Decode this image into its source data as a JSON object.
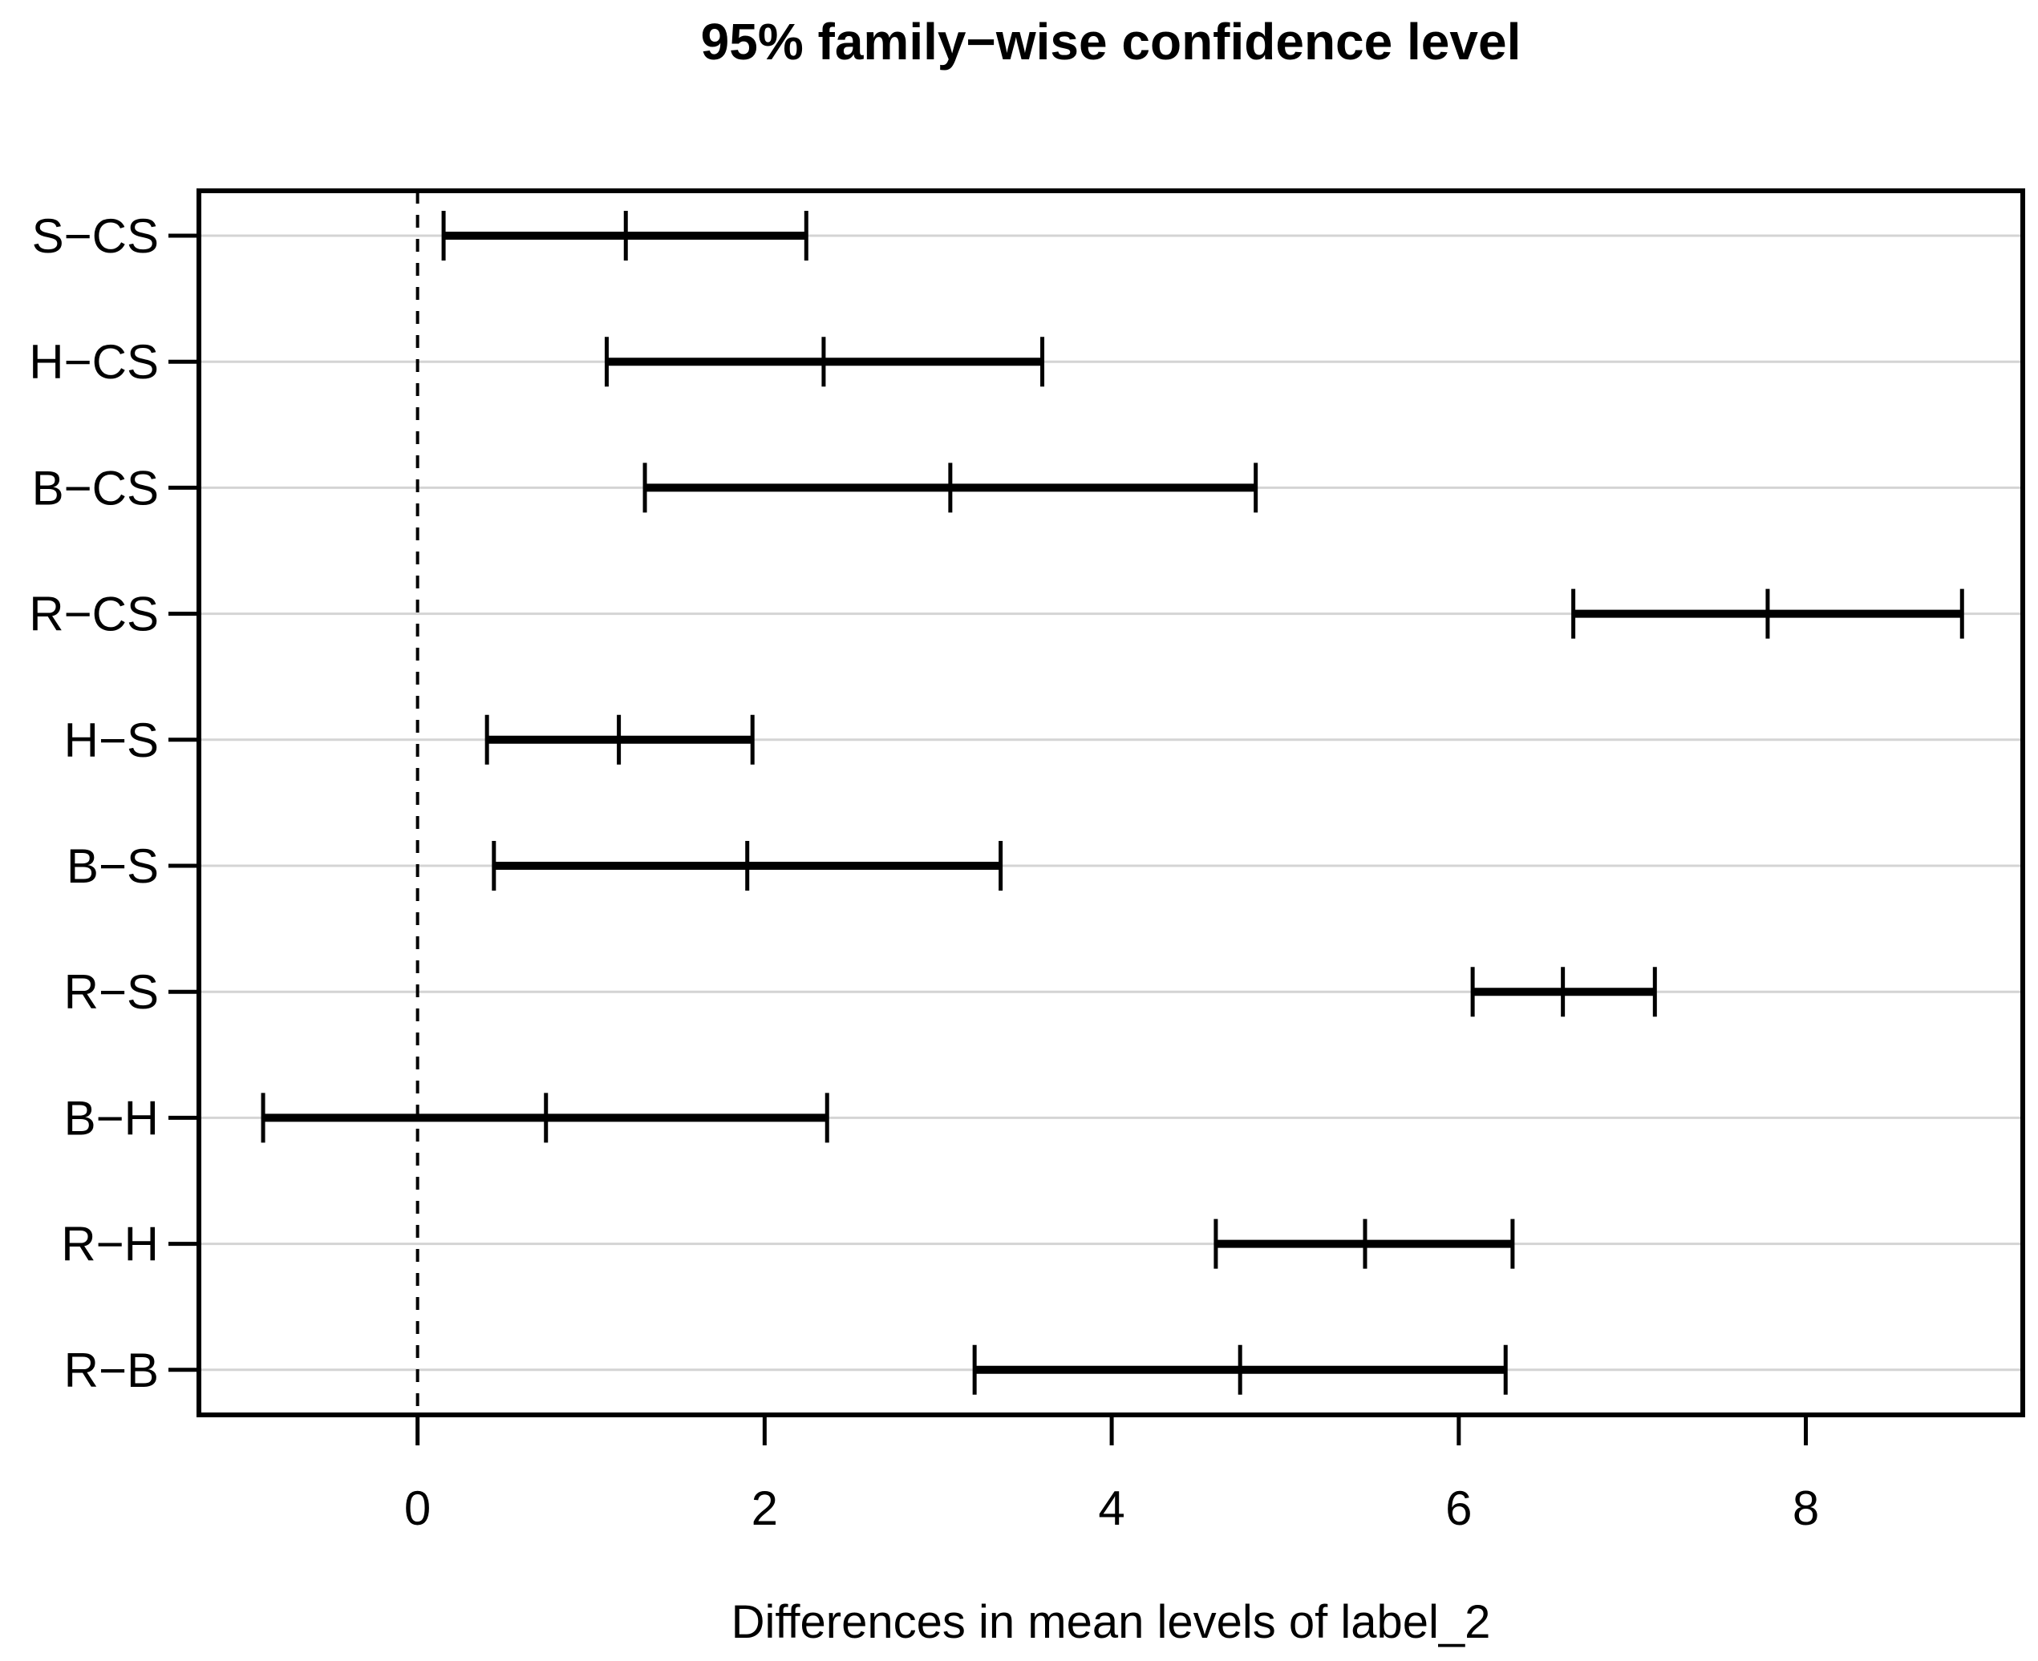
{
  "figure": {
    "title": "95% family−wise confidence level",
    "xlabel": "Differences in mean levels of label_2"
  },
  "chart_data": {
    "type": "errorbar",
    "subtype": "tukey-hsd-confidence-intervals",
    "orientation": "horizontal",
    "title": "95% family−wise confidence level",
    "xlabel": "Differences in mean levels of label_2",
    "ylabel": "",
    "xticks": [
      0,
      2,
      4,
      6,
      8
    ],
    "xlim": [
      -1.26,
      9.25
    ],
    "grid": "horizontal-light-gray",
    "legend": "none",
    "zero_reference_line": {
      "x": 0,
      "style": "dashed",
      "color": "#000000"
    },
    "categories": [
      "S−CS",
      "H−CS",
      "B−CS",
      "R−CS",
      "H−S",
      "B−S",
      "R−S",
      "B−H",
      "R−H",
      "R−B"
    ],
    "comparisons": [
      {
        "label": "S−CS",
        "lwr": 0.15,
        "diff": 1.2,
        "upr": 2.24
      },
      {
        "label": "H−CS",
        "lwr": 1.09,
        "diff": 2.34,
        "upr": 3.6
      },
      {
        "label": "B−CS",
        "lwr": 1.31,
        "diff": 3.07,
        "upr": 4.83
      },
      {
        "label": "R−CS",
        "lwr": 6.66,
        "diff": 7.78,
        "upr": 8.9
      },
      {
        "label": "H−S",
        "lwr": 0.4,
        "diff": 1.16,
        "upr": 1.93
      },
      {
        "label": "B−S",
        "lwr": 0.44,
        "diff": 1.9,
        "upr": 3.36
      },
      {
        "label": "R−S",
        "lwr": 6.08,
        "diff": 6.6,
        "upr": 7.13
      },
      {
        "label": "B−H",
        "lwr": -0.89,
        "diff": 0.74,
        "upr": 2.36
      },
      {
        "label": "R−H",
        "lwr": 4.6,
        "diff": 5.46,
        "upr": 6.31
      },
      {
        "label": "R−B",
        "lwr": 3.21,
        "diff": 4.74,
        "upr": 6.27
      }
    ]
  },
  "colors": {
    "interval_line": "#000000",
    "grid_line": "#d4d4d4",
    "axis_line": "#000000",
    "background": "#ffffff"
  }
}
